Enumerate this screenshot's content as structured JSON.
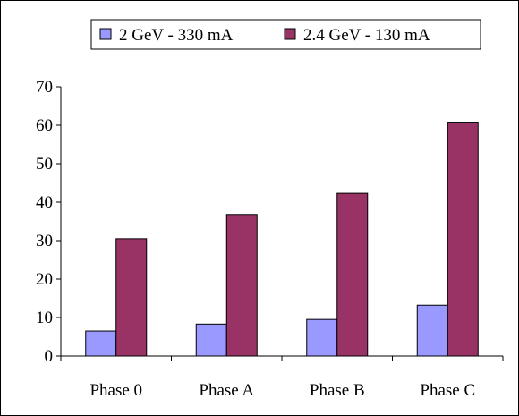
{
  "chart_data": {
    "type": "bar",
    "categories": [
      "Phase 0",
      "Phase A",
      "Phase B",
      "Phase C"
    ],
    "series": [
      {
        "name": "2 GeV - 330 mA",
        "values": [
          6.5,
          8.3,
          9.5,
          13.2
        ],
        "color": "#9999ff"
      },
      {
        "name": "2.4  GeV - 130 mA",
        "values": [
          30.5,
          36.8,
          42.3,
          60.8
        ],
        "color": "#993366"
      }
    ],
    "title": "",
    "xlabel": "",
    "ylabel": "",
    "ylim": [
      0,
      70
    ],
    "yticks": [
      0,
      10,
      20,
      30,
      40,
      50,
      60,
      70
    ],
    "grid": false,
    "legend_position": "top"
  }
}
